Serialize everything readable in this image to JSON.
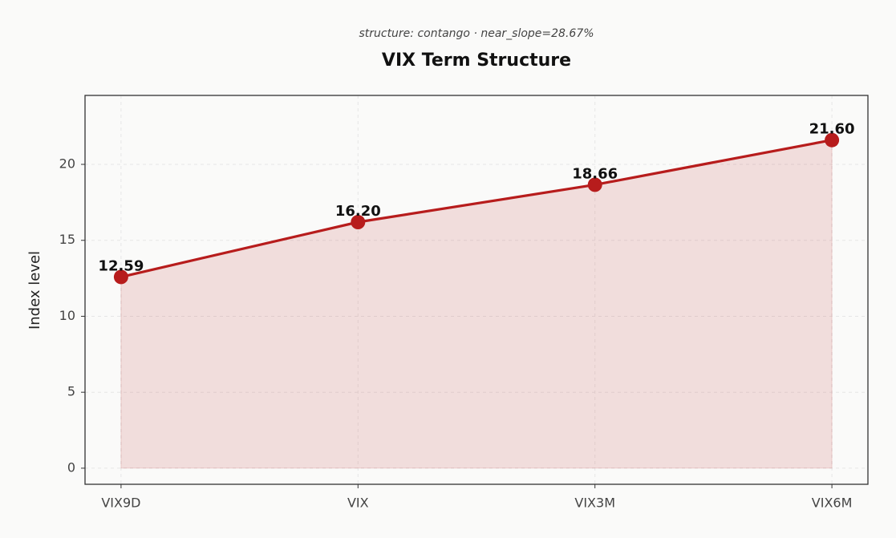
{
  "chart_data": {
    "type": "line",
    "title": "VIX Term Structure",
    "subtitle": "structure: contango · near_slope=28.67%",
    "y_label": "Index level",
    "categories": [
      "VIX9D",
      "VIX",
      "VIX3M",
      "VIX6M"
    ],
    "values": [
      12.59,
      16.2,
      18.66,
      21.6
    ],
    "value_labels": [
      "12.59",
      "16.20",
      "18.66",
      "21.60"
    ],
    "color": "#b71c1c",
    "fill": true,
    "ylim": [
      -1.06,
      24.54
    ],
    "yticks": [
      0,
      5,
      10,
      15,
      20
    ],
    "grid": true
  }
}
